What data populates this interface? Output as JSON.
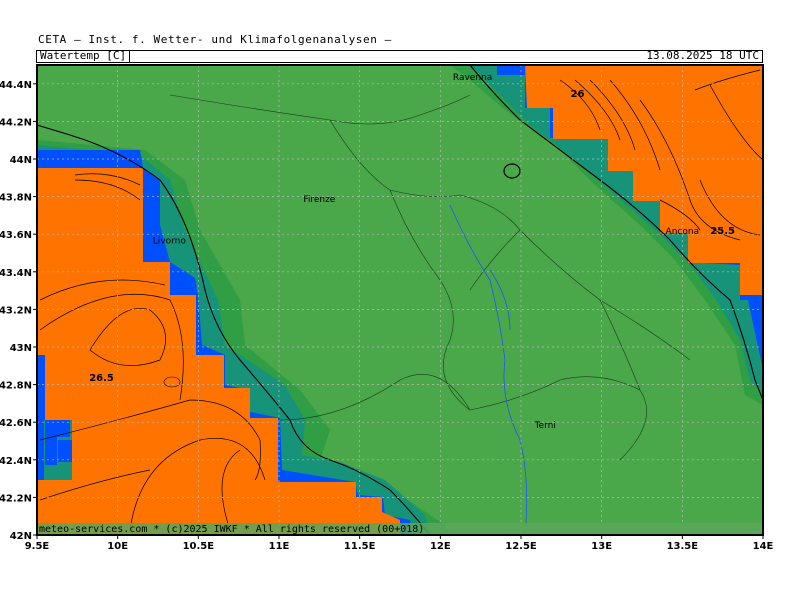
{
  "header": {
    "institution": "CETA — Inst. f. Wetter- und Klimafolgenanalysen —",
    "parameter": "Watertemp [C]",
    "datetime": "13.08.2025 18 UTC"
  },
  "map": {
    "lon_range": [
      9.5,
      14
    ],
    "lat_range": [
      42,
      44.5
    ],
    "lon_ticks": [
      "9.5E",
      "10E",
      "10.5E",
      "11E",
      "11.5E",
      "12E",
      "12.5E",
      "13E",
      "13.5E",
      "14E"
    ],
    "lat_ticks": [
      "42N",
      "42.2N",
      "42.4N",
      "42.6N",
      "42.8N",
      "43N",
      "43.2N",
      "43.4N",
      "43.6N",
      "43.8N",
      "44N",
      "44.2N",
      "44.4N"
    ],
    "cities": [
      {
        "name": "Ravenna",
        "lon": 12.2,
        "lat": 44.42
      },
      {
        "name": "Firenze",
        "lon": 11.25,
        "lat": 43.77
      },
      {
        "name": "Livorno",
        "lon": 10.32,
        "lat": 43.55
      },
      {
        "name": "Ancona",
        "lon": 13.5,
        "lat": 43.6
      },
      {
        "name": "Terni",
        "lon": 12.65,
        "lat": 42.57
      }
    ],
    "contour_labels": [
      {
        "text": "26",
        "lon": 12.85,
        "lat": 44.33
      },
      {
        "text": "25.5",
        "lon": 13.75,
        "lat": 43.6
      },
      {
        "text": "26.5",
        "lon": 9.9,
        "lat": 42.82
      }
    ],
    "colors": {
      "land": "#4aa74a",
      "water_warm": "#ff7300",
      "water_blue": "#0050ff",
      "coast_dark": "#1e8f3c",
      "coast_teal": "#17937a",
      "coast_mid": "#2f9e44"
    },
    "copyright": "meteo-services.com * (c)2025 IWKF * All rights reserved (00+018)"
  }
}
